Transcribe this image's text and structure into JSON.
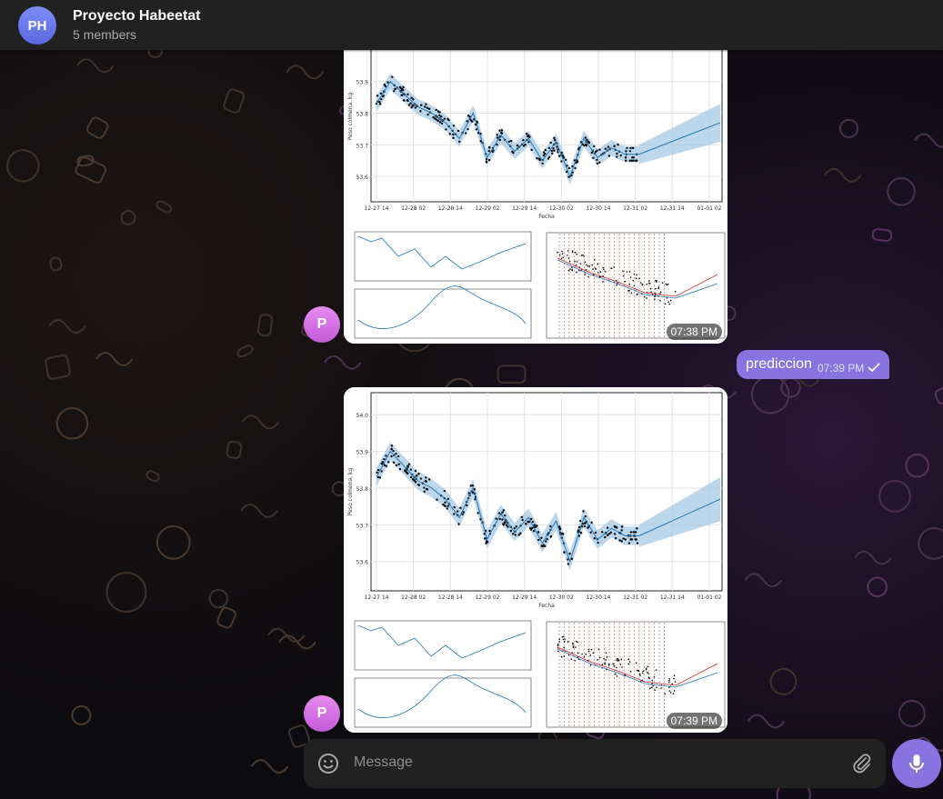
{
  "header": {
    "avatar_initials": "PH",
    "title": "Proyecto Habeetat",
    "subtitle": "5 members"
  },
  "messages": [
    {
      "sender_initial": "P",
      "type": "album",
      "time": "07:38 PM",
      "photos": [
        {
          "kind": "forecast_chart",
          "chart_data": {
            "type": "scatter",
            "title": "",
            "xlabel": "Fecha",
            "ylabel": "Peso colmena, kg",
            "x_ticks": [
              "12-27 14",
              "12-28 02",
              "12-28 14",
              "12-29 02",
              "12-29 14",
              "12-30 02",
              "12-30 14",
              "12-31 02",
              "12-31 14",
              "01-01 02"
            ],
            "y_ticks": [
              "53.6",
              "53.7",
              "53.8",
              "53.9"
            ]
          }
        },
        {
          "kind": "components_chart"
        },
        {
          "kind": "changepoints_chart"
        }
      ]
    },
    {
      "type": "text",
      "outgoing": true,
      "text": "prediccion",
      "time": "07:39 PM",
      "status_icon": "check-icon"
    },
    {
      "sender_initial": "P",
      "type": "album",
      "time": "07:39 PM",
      "photos": [
        {
          "kind": "forecast_chart",
          "chart_data": {
            "type": "scatter",
            "title": "",
            "xlabel": "Fecha",
            "ylabel": "Peso colmena, kg",
            "x_ticks": [
              "12-27 14",
              "12-28 02",
              "12-28 14",
              "12-29 02",
              "12-29 14",
              "12-30 02",
              "12-30 14",
              "12-31 02",
              "12-31 14",
              "01-01 02"
            ],
            "y_ticks": [
              "53.6",
              "53.7",
              "53.8",
              "53.9",
              "54.0"
            ],
            "series": [
              {
                "values": [
                  53.83,
                  53.9,
                  53.86,
                  53.82,
                  53.8,
                  53.77,
                  53.72,
                  53.8,
                  53.66,
                  53.73,
                  53.68,
                  53.72,
                  53.65,
                  53.71,
                  53.6,
                  53.72,
                  53.66,
                  53.69,
                  53.67,
                  53.67,
                  53.7,
                  53.73,
                  53.77
                ]
              }
            ]
          }
        },
        {
          "kind": "components_chart"
        },
        {
          "kind": "changepoints_chart"
        }
      ]
    }
  ],
  "composer": {
    "placeholder": "Message"
  },
  "colors": {
    "accent": "#8774e1",
    "header_bg": "#212121",
    "forecast_line": "#1f77b4",
    "uncertainty": "#a6c8e6"
  }
}
